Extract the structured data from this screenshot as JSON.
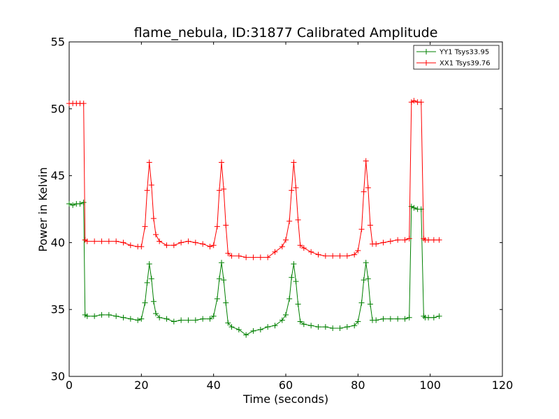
{
  "chart_data": {
    "type": "line",
    "title": "flame_nebula, ID:31877 Calibrated Amplitude",
    "xlabel": "Time (seconds)",
    "ylabel": "Power in Kelvin",
    "xlim": [
      0,
      120
    ],
    "ylim": [
      30,
      55
    ],
    "xticks": [
      "0",
      "20",
      "40",
      "60",
      "80",
      "100",
      "120"
    ],
    "yticks": [
      "30",
      "35",
      "40",
      "45",
      "50",
      "55"
    ],
    "grid": false,
    "legend_position": "top-right",
    "markers": "plus",
    "series": [
      {
        "name": "YY1 Tsys33.95",
        "color": "#008000",
        "x": [
          0,
          1,
          2,
          3,
          4,
          4.4,
          5,
          7,
          9,
          11,
          13,
          15,
          17,
          19,
          20,
          21,
          21.6,
          22.2,
          22.8,
          23.4,
          24,
          25,
          27,
          29,
          31,
          33,
          35,
          37,
          39,
          40,
          41,
          41.6,
          42.2,
          42.8,
          43.4,
          44,
          45,
          47,
          49,
          51,
          53,
          55,
          57,
          59,
          60,
          61,
          61.6,
          62.2,
          62.8,
          63.4,
          64,
          65,
          67,
          69,
          71,
          73,
          75,
          77,
          79,
          80,
          81,
          81.6,
          82.2,
          82.8,
          83.4,
          84,
          85,
          87,
          89,
          91,
          93,
          94.2,
          94.8,
          95.5,
          96.5,
          97.5,
          98.2,
          98.6,
          99.5,
          101,
          102.5
        ],
        "y": [
          42.9,
          42.8,
          42.9,
          42.9,
          43.0,
          34.6,
          34.5,
          34.5,
          34.6,
          34.6,
          34.5,
          34.4,
          34.3,
          34.2,
          34.3,
          35.5,
          37.0,
          38.4,
          37.3,
          35.6,
          34.7,
          34.4,
          34.3,
          34.1,
          34.2,
          34.2,
          34.2,
          34.3,
          34.3,
          34.5,
          35.8,
          37.3,
          38.5,
          37.2,
          35.5,
          34.0,
          33.7,
          33.5,
          33.1,
          33.4,
          33.5,
          33.7,
          33.8,
          34.2,
          34.6,
          35.8,
          37.4,
          38.4,
          37.1,
          35.4,
          34.1,
          33.9,
          33.8,
          33.7,
          33.7,
          33.6,
          33.6,
          33.7,
          33.8,
          34.1,
          35.5,
          37.2,
          38.5,
          37.3,
          35.4,
          34.2,
          34.2,
          34.3,
          34.3,
          34.3,
          34.3,
          34.4,
          42.7,
          42.6,
          42.5,
          42.5,
          34.5,
          34.4,
          34.4,
          34.4,
          34.5
        ]
      },
      {
        "name": "XX1 Tsys39.76",
        "color": "#ff0000",
        "x": [
          0,
          1,
          2,
          3,
          4,
          4.4,
          5,
          7,
          9,
          11,
          13,
          15,
          17,
          19,
          20,
          21,
          21.6,
          22.2,
          22.8,
          23.4,
          24,
          25,
          27,
          29,
          31,
          33,
          35,
          37,
          39,
          40,
          41,
          41.6,
          42.2,
          42.8,
          43.4,
          44,
          45,
          47,
          49,
          51,
          53,
          55,
          57,
          59,
          60,
          61,
          61.6,
          62.2,
          62.8,
          63.4,
          64,
          65,
          67,
          69,
          71,
          73,
          75,
          77,
          79,
          80,
          81,
          81.6,
          82.2,
          82.8,
          83.4,
          84,
          85,
          87,
          89,
          91,
          93,
          94.2,
          94.8,
          95.5,
          96.5,
          97.5,
          98.2,
          98.6,
          99.5,
          101,
          102.5
        ],
        "y": [
          50.4,
          50.4,
          50.4,
          50.4,
          50.4,
          40.2,
          40.1,
          40.1,
          40.1,
          40.1,
          40.1,
          40.0,
          39.8,
          39.7,
          39.7,
          41.2,
          43.9,
          46.0,
          44.3,
          41.8,
          40.6,
          40.1,
          39.8,
          39.8,
          40.0,
          40.1,
          40.0,
          39.9,
          39.7,
          39.8,
          41.2,
          43.9,
          46.0,
          44.0,
          41.3,
          39.2,
          39.0,
          39.0,
          38.9,
          38.9,
          38.9,
          38.9,
          39.3,
          39.7,
          40.2,
          41.6,
          43.9,
          46.0,
          44.1,
          41.7,
          39.8,
          39.6,
          39.3,
          39.1,
          39.0,
          39.0,
          39.0,
          39.0,
          39.1,
          39.4,
          41.0,
          43.8,
          46.1,
          44.1,
          41.3,
          39.9,
          39.9,
          40.0,
          40.1,
          40.2,
          40.2,
          40.3,
          50.5,
          50.6,
          50.5,
          50.5,
          40.3,
          40.2,
          40.2,
          40.2,
          40.2
        ]
      }
    ]
  }
}
